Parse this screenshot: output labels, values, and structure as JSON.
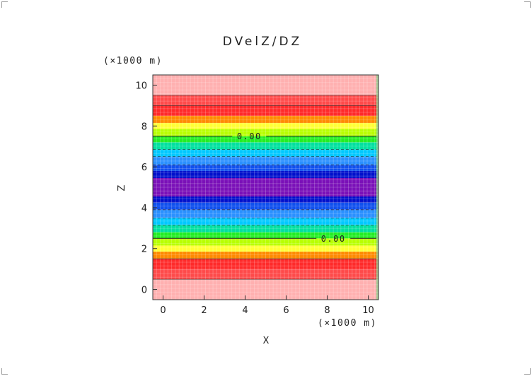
{
  "chart_data": {
    "type": "heatmap",
    "title": "DVelZ/DZ",
    "xlabel": "X",
    "ylabel": "Z",
    "x_unit": "(×1000 m)",
    "y_unit": "(×1000 m)",
    "xlim": [
      -0.5,
      10.5
    ],
    "ylim": [
      -0.5,
      10.5
    ],
    "x_ticks": [
      0,
      2,
      4,
      6,
      8,
      10
    ],
    "y_ticks": [
      0,
      2,
      4,
      6,
      8,
      10
    ],
    "bands": [
      {
        "z0": -0.5,
        "z1": 0.5,
        "color": "#ffb0b0"
      },
      {
        "z0": 0.5,
        "z1": 1.0,
        "color": "#ff4a4a"
      },
      {
        "z0": 1.0,
        "z1": 1.5,
        "color": "#ff2a2a"
      },
      {
        "z0": 1.5,
        "z1": 1.85,
        "color": "#ff8a00"
      },
      {
        "z0": 1.85,
        "z1": 2.15,
        "color": "#ffff33"
      },
      {
        "z0": 2.15,
        "z1": 2.5,
        "color": "#b8ff00"
      },
      {
        "z0": 2.5,
        "z1": 2.8,
        "color": "#22ee22"
      },
      {
        "z0": 2.8,
        "z1": 3.15,
        "color": "#00e0a0"
      },
      {
        "z0": 3.15,
        "z1": 3.5,
        "color": "#00c8ff"
      },
      {
        "z0": 3.5,
        "z1": 3.9,
        "color": "#2a90ff"
      },
      {
        "z0": 3.9,
        "z1": 4.25,
        "color": "#1050ee"
      },
      {
        "z0": 4.25,
        "z1": 4.55,
        "color": "#0010cc"
      },
      {
        "z0": 4.55,
        "z1": 5.45,
        "color": "#7a10b8"
      },
      {
        "z0": 5.45,
        "z1": 5.8,
        "color": "#0010cc"
      },
      {
        "z0": 5.8,
        "z1": 6.1,
        "color": "#1050ee"
      },
      {
        "z0": 6.1,
        "z1": 6.5,
        "color": "#2a90ff"
      },
      {
        "z0": 6.5,
        "z1": 6.85,
        "color": "#00c8ff"
      },
      {
        "z0": 6.85,
        "z1": 7.2,
        "color": "#00e0a0"
      },
      {
        "z0": 7.2,
        "z1": 7.5,
        "color": "#22ee22"
      },
      {
        "z0": 7.5,
        "z1": 7.85,
        "color": "#b8ff00"
      },
      {
        "z0": 7.85,
        "z1": 8.15,
        "color": "#ffff33"
      },
      {
        "z0": 8.15,
        "z1": 8.5,
        "color": "#ff8a00"
      },
      {
        "z0": 8.5,
        "z1": 9.0,
        "color": "#ff2a2a"
      },
      {
        "z0": 9.0,
        "z1": 9.5,
        "color": "#ff4a4a"
      },
      {
        "z0": 9.5,
        "z1": 10.5,
        "color": "#ffb0b0"
      }
    ],
    "contours": [
      {
        "z": 2.5,
        "style": "solid",
        "label": "0.00",
        "label_x": 8.3
      },
      {
        "z": 7.5,
        "style": "solid",
        "label": "0.00",
        "label_x": 4.2
      },
      {
        "z": 0.5,
        "style": "solid"
      },
      {
        "z": 1.5,
        "style": "solid"
      },
      {
        "z": 9.0,
        "style": "solid"
      },
      {
        "z": 9.5,
        "style": "solid"
      },
      {
        "z": 3.15,
        "style": "dashed"
      },
      {
        "z": 3.5,
        "style": "dashed"
      },
      {
        "z": 3.9,
        "style": "dashed"
      },
      {
        "z": 6.1,
        "style": "dashed"
      },
      {
        "z": 6.5,
        "style": "dashed"
      },
      {
        "z": 6.85,
        "style": "dashed"
      }
    ]
  }
}
